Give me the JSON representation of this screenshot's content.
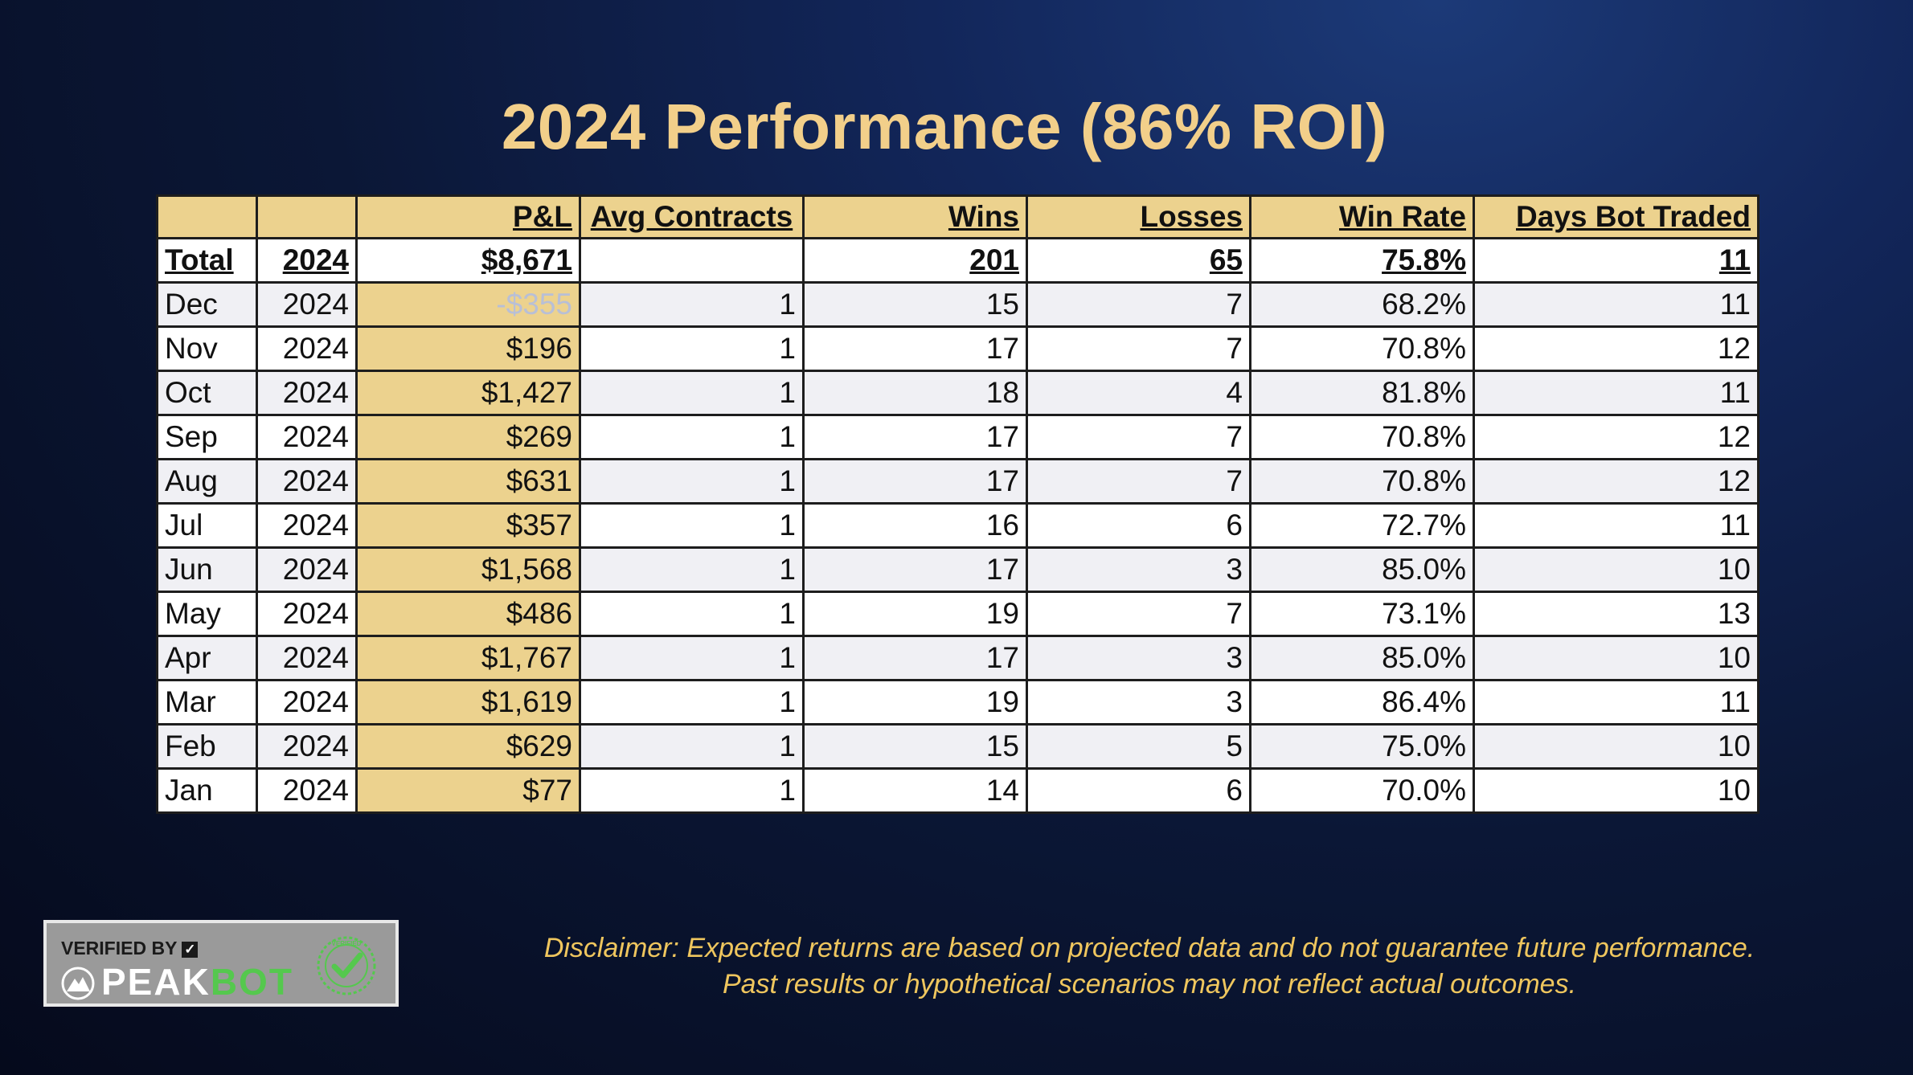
{
  "title": "2024 Performance (86% ROI)",
  "table": {
    "headers": [
      "",
      "",
      "P&L",
      "Avg Contracts",
      "Wins",
      "Losses",
      "Win Rate",
      "Days Bot Traded"
    ],
    "total": {
      "label": "Total",
      "year": "2024",
      "pl": "$8,671",
      "avg": "",
      "wins": "201",
      "losses": "65",
      "winrate": "75.8%",
      "days": "11"
    },
    "rows": [
      {
        "month": "Dec",
        "year": "2024",
        "pl": "-$355",
        "avg": "1",
        "wins": "15",
        "losses": "7",
        "winrate": "68.2%",
        "days": "11"
      },
      {
        "month": "Nov",
        "year": "2024",
        "pl": "$196",
        "avg": "1",
        "wins": "17",
        "losses": "7",
        "winrate": "70.8%",
        "days": "12"
      },
      {
        "month": "Oct",
        "year": "2024",
        "pl": "$1,427",
        "avg": "1",
        "wins": "18",
        "losses": "4",
        "winrate": "81.8%",
        "days": "11"
      },
      {
        "month": "Sep",
        "year": "2024",
        "pl": "$269",
        "avg": "1",
        "wins": "17",
        "losses": "7",
        "winrate": "70.8%",
        "days": "12"
      },
      {
        "month": "Aug",
        "year": "2024",
        "pl": "$631",
        "avg": "1",
        "wins": "17",
        "losses": "7",
        "winrate": "70.8%",
        "days": "12"
      },
      {
        "month": "Jul",
        "year": "2024",
        "pl": "$357",
        "avg": "1",
        "wins": "16",
        "losses": "6",
        "winrate": "72.7%",
        "days": "11"
      },
      {
        "month": "Jun",
        "year": "2024",
        "pl": "$1,568",
        "avg": "1",
        "wins": "17",
        "losses": "3",
        "winrate": "85.0%",
        "days": "10"
      },
      {
        "month": "May",
        "year": "2024",
        "pl": "$486",
        "avg": "1",
        "wins": "19",
        "losses": "7",
        "winrate": "73.1%",
        "days": "13"
      },
      {
        "month": "Apr",
        "year": "2024",
        "pl": "$1,767",
        "avg": "1",
        "wins": "17",
        "losses": "3",
        "winrate": "85.0%",
        "days": "10"
      },
      {
        "month": "Mar",
        "year": "2024",
        "pl": "$1,619",
        "avg": "1",
        "wins": "19",
        "losses": "3",
        "winrate": "86.4%",
        "days": "11"
      },
      {
        "month": "Feb",
        "year": "2024",
        "pl": "$629",
        "avg": "1",
        "wins": "15",
        "losses": "5",
        "winrate": "75.0%",
        "days": "10"
      },
      {
        "month": "Jan",
        "year": "2024",
        "pl": "$77",
        "avg": "1",
        "wins": "14",
        "losses": "6",
        "winrate": "70.0%",
        "days": "10"
      }
    ]
  },
  "disclaimer": {
    "line1": "Disclaimer: Expected returns are based on projected data and do not guarantee future performance.",
    "line2": "Past results or hypothetical scenarios may not reflect actual outcomes."
  },
  "badge": {
    "verified_by": "VERIFIED BY",
    "check_glyph": "✓",
    "brand_peak": "PEAK",
    "brand_bot": "BOT",
    "seal_text": "VERIFIED"
  },
  "colors": {
    "title": "#f2cf8a",
    "header_fill": "#ecd28e",
    "negative_fill": "#0c1a3a",
    "disclaimer": "#efc65e",
    "brand_green": "#55c84e"
  }
}
